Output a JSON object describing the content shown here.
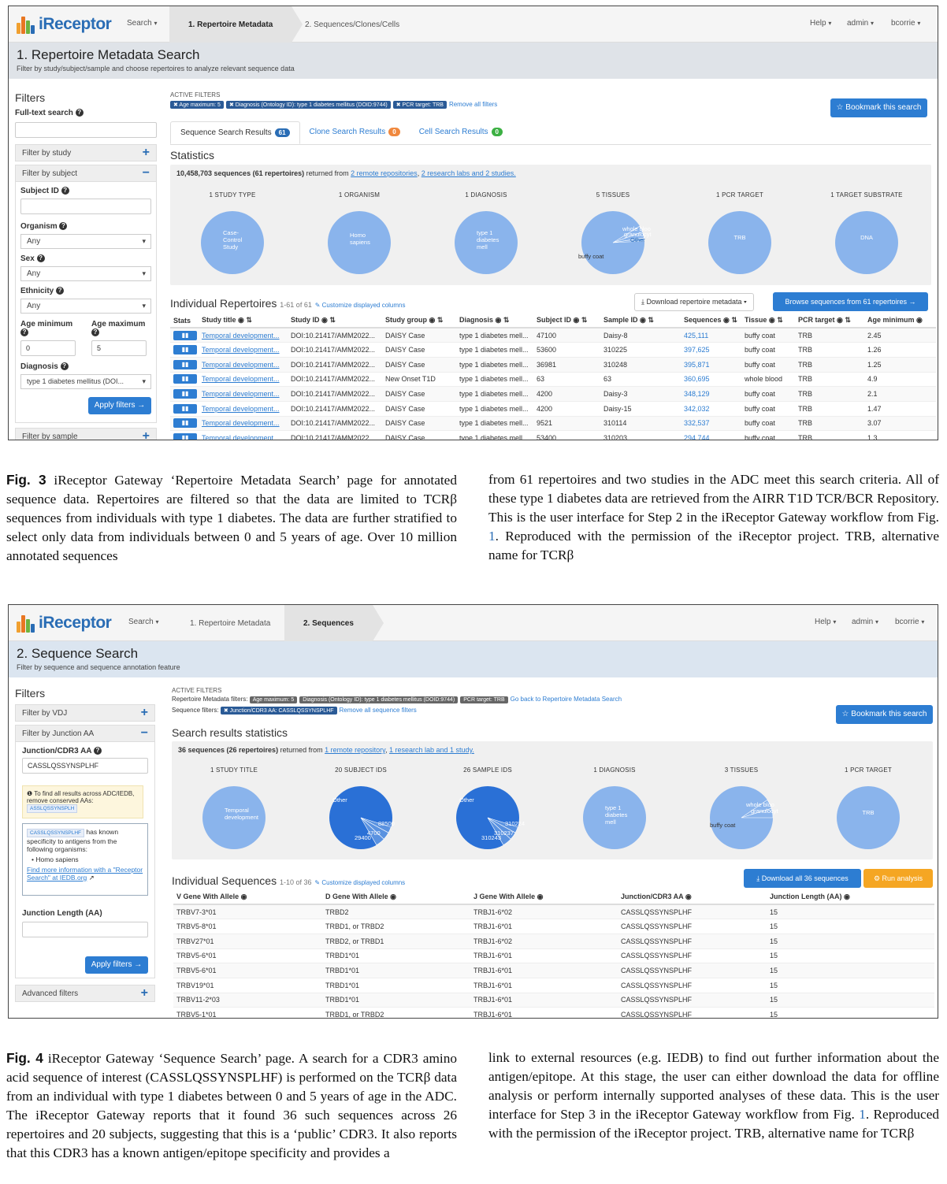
{
  "fig3": {
    "nav": {
      "logo": "iReceptor",
      "search": "Search",
      "step1": "1. Repertoire Metadata",
      "step2": "2. Sequences/Clones/Cells",
      "help": "Help",
      "admin": "admin",
      "user": "bcorrie"
    },
    "header": {
      "title": "1. Repertoire Metadata Search",
      "subtitle": "Filter by study/subject/sample and choose repertoires to analyze relevant sequence data"
    },
    "side": {
      "filters": "Filters",
      "fulltext": "Full-text search",
      "by_study": "Filter by study",
      "by_subject": "Filter by subject",
      "subject_id": "Subject ID",
      "organism": "Organism",
      "organism_val": "Any",
      "sex": "Sex",
      "sex_val": "Any",
      "ethnicity": "Ethnicity",
      "ethnicity_val": "Any",
      "age_min": "Age minimum",
      "age_max": "Age maximum",
      "age_min_val": "0",
      "age_max_val": "5",
      "diagnosis": "Diagnosis",
      "diagnosis_val": "type 1 diabetes mellitus (DOI...",
      "apply": "Apply filters →",
      "by_sample": "Filter by sample"
    },
    "active": {
      "title": "ACTIVE FILTERS",
      "c1": "✖ Age maximum: 5",
      "c2": "✖ Diagnosis (Ontology ID): type 1 diabetes mellitus (DOID:9744)",
      "c3": "✖ PCR target: TRB",
      "remove": "Remove all filters"
    },
    "bookmark": "☆ Bookmark this search",
    "tabs": {
      "t1": "Sequence Search Results",
      "t1n": "61",
      "t2": "Clone Search Results",
      "t2n": "0",
      "t3": "Cell Search Results",
      "t3n": "0"
    },
    "stats_title": "Statistics",
    "stats_line": {
      "pre": "10,458,703 sequences (61 repertoires)",
      "mid": " returned from ",
      "l1": "2 remote repositories",
      "c": ", ",
      "l2": "2 research labs and 2 studies."
    },
    "pies": [
      {
        "title": "1 STUDY TYPE",
        "labels": [
          "Case-",
          "Control",
          "Study"
        ]
      },
      {
        "title": "1 ORGANISM",
        "labels": [
          "Homo",
          "sapiens"
        ]
      },
      {
        "title": "1 DIAGNOSIS",
        "labels": [
          "type 1",
          "diabetes",
          "mell"
        ]
      },
      {
        "title": "5 TISSUES",
        "labels": [
          "whole bloo",
          "granulocyt",
          "Other",
          "buffy coat"
        ]
      },
      {
        "title": "1 PCR TARGET",
        "labels": [
          "TRB"
        ]
      },
      {
        "title": "1 TARGET SUBSTRATE",
        "labels": [
          "DNA"
        ]
      }
    ],
    "indiv": {
      "title": "Individual Repertoires",
      "range": "1-61 of 61",
      "customize": "Customize displayed columns",
      "download": "⤓ Download repertoire metadata ▾",
      "browse": "Browse sequences from 61 repertoires →"
    },
    "table": {
      "headers": [
        "Stats",
        "Study title",
        "Study ID",
        "Study group",
        "Diagnosis",
        "Subject ID",
        "Sample ID",
        "Sequences",
        "Tissue",
        "PCR target",
        "Age minimum"
      ],
      "rows": [
        [
          "Temporal development...",
          "DOI:10.21417/AMM2022...",
          "DAISY Case",
          "type 1 diabetes mell...",
          "47100",
          "Daisy-8",
          "425,111",
          "buffy coat",
          "TRB",
          "2.45"
        ],
        [
          "Temporal development...",
          "DOI:10.21417/AMM2022...",
          "DAISY Case",
          "type 1 diabetes mell...",
          "53600",
          "310225",
          "397,625",
          "buffy coat",
          "TRB",
          "1.26"
        ],
        [
          "Temporal development...",
          "DOI:10.21417/AMM2022...",
          "DAISY Case",
          "type 1 diabetes mell...",
          "36981",
          "310248",
          "395,871",
          "buffy coat",
          "TRB",
          "1.25"
        ],
        [
          "Temporal development...",
          "DOI:10.21417/AMM2022...",
          "New Onset T1D",
          "type 1 diabetes mell...",
          "63",
          "63",
          "360,695",
          "whole blood",
          "TRB",
          "4.9"
        ],
        [
          "Temporal development...",
          "DOI:10.21417/AMM2022...",
          "DAISY Case",
          "type 1 diabetes mell...",
          "4200",
          "Daisy-3",
          "348,129",
          "buffy coat",
          "TRB",
          "2.1"
        ],
        [
          "Temporal development...",
          "DOI:10.21417/AMM2022...",
          "DAISY Case",
          "type 1 diabetes mell...",
          "4200",
          "Daisy-15",
          "342,032",
          "buffy coat",
          "TRB",
          "1.47"
        ],
        [
          "Temporal development...",
          "DOI:10.21417/AMM2022...",
          "DAISY Case",
          "type 1 diabetes mell...",
          "9521",
          "310114",
          "332,537",
          "buffy coat",
          "TRB",
          "3.07"
        ],
        [
          "Temporal development...",
          "DOI:10.21417/AMM2022...",
          "DAISY Case",
          "type 1 diabetes mell...",
          "53400",
          "310203",
          "294,744",
          "buffy coat",
          "TRB",
          "1.3"
        ]
      ]
    }
  },
  "cap3": {
    "label": "Fig. 3",
    "left": "iReceptor Gateway ‘Repertoire Metadata Search’ page for annotated sequence data. Repertoires are filtered so that the data are limited to TCRβ sequences from individuals with type 1 diabetes. The data are further stratified to select only data from individuals between 0 and 5 years of age. Over 10 million annotated sequences",
    "right_a": "from 61 repertoires and two studies in the ADC meet this search criteria. All of these type 1 diabetes data are retrieved from the AIRR T1D TCR/BCR Repository. This is the user interface for Step 2 in the iReceptor Gateway workflow from Fig. ",
    "right_ref": "1",
    "right_b": ". Reproduced with the permission of the iReceptor project. TRB, alternative name for TCRβ"
  },
  "fig4": {
    "nav": {
      "logo": "iReceptor",
      "search": "Search",
      "step1": "1. Repertoire Metadata",
      "step2": "2. Sequences",
      "help": "Help",
      "admin": "admin",
      "user": "bcorrie"
    },
    "header": {
      "title": "2. Sequence Search",
      "subtitle": "Filter by sequence and sequence annotation feature"
    },
    "side": {
      "filters": "Filters",
      "by_vdj": "Filter by VDJ",
      "by_junction": "Filter by Junction AA",
      "junction": "Junction/CDR3 AA",
      "junction_val": "CASSLQSSYNSPLHF",
      "info": "To find all results across ADC/IEDB, remove conserved AAs:",
      "info_code": "ASSLQSSYNSPLH",
      "ag_code": "CASSLQSSYNSPLHF",
      "ag_text": "has known specificity to antigens from the following organisms:",
      "ag_org": "Homo sapiens",
      "ag_link": "Find more information with a \"Receptor Search\" at IEDB.org",
      "jlen": "Junction Length (AA)",
      "apply": "Apply filters →",
      "advanced": "Advanced filters"
    },
    "active": {
      "title": "ACTIVE FILTERS",
      "rep_label": "Repertoire Metadata filters:",
      "c1": "Age maximum: 5",
      "c2": "Diagnosis (Ontology ID): type 1 diabetes mellitus (DOID:9744)",
      "c3": "PCR target: TRB",
      "goback": "Go back to Repertoire Metadata Search",
      "seq_label": "Sequence filters:",
      "s1": "✖ Junction/CDR3 AA: CASSLQSSYNSPLHF",
      "remove": "Remove all sequence filters"
    },
    "bookmark": "☆ Bookmark this search",
    "stats_title": "Search results statistics",
    "stats_line": {
      "pre": "36 sequences (26 repertoires)",
      "mid": " returned from ",
      "l1": "1 remote repository",
      "c": ", ",
      "l2": "1 research lab and 1 study."
    },
    "pies": [
      {
        "title": "1 STUDY TITLE",
        "labels": [
          "Temporal",
          "development"
        ]
      },
      {
        "title": "20 SUBJECT IDS",
        "labels": [
          "Other",
          "88500",
          "4700",
          "29400"
        ]
      },
      {
        "title": "26 SAMPLE IDS",
        "labels": [
          "Other",
          "310224",
          "310237",
          "310243"
        ]
      },
      {
        "title": "1 DIAGNOSIS",
        "labels": [
          "type 1",
          "diabetes",
          "mell"
        ]
      },
      {
        "title": "3 TISSUES",
        "labels": [
          "whole bloo",
          "granulocyt",
          "buffy coat"
        ]
      },
      {
        "title": "1 PCR TARGET",
        "labels": [
          "TRB"
        ]
      }
    ],
    "indiv": {
      "title": "Individual Sequences",
      "range": "1-10 of 36",
      "customize": "Customize displayed columns",
      "download": "⤓ Download all 36 sequences",
      "run": "⚙ Run analysis"
    },
    "table": {
      "headers": [
        "V Gene With Allele",
        "D Gene With Allele",
        "J Gene With Allele",
        "Junction/CDR3 AA",
        "Junction Length (AA)"
      ],
      "rows": [
        [
          "TRBV7-3*01",
          "TRBD2",
          "TRBJ1-6*02",
          "CASSLQSSYNSPLHF",
          "15"
        ],
        [
          "TRBV5-8*01",
          "TRBD1, or TRBD2",
          "TRBJ1-6*01",
          "CASSLQSSYNSPLHF",
          "15"
        ],
        [
          "TRBV27*01",
          "TRBD2, or TRBD1",
          "TRBJ1-6*02",
          "CASSLQSSYNSPLHF",
          "15"
        ],
        [
          "TRBV5-6*01",
          "TRBD1*01",
          "TRBJ1-6*01",
          "CASSLQSSYNSPLHF",
          "15"
        ],
        [
          "TRBV5-6*01",
          "TRBD1*01",
          "TRBJ1-6*01",
          "CASSLQSSYNSPLHF",
          "15"
        ],
        [
          "TRBV19*01",
          "TRBD1*01",
          "TRBJ1-6*01",
          "CASSLQSSYNSPLHF",
          "15"
        ],
        [
          "TRBV11-2*03",
          "TRBD1*01",
          "TRBJ1-6*01",
          "CASSLQSSYNSPLHF",
          "15"
        ],
        [
          "TRBV5-1*01",
          "TRBD1, or TRBD2",
          "TRBJ1-6*01",
          "CASSLQSSYNSPLHF",
          "15"
        ]
      ]
    }
  },
  "cap4": {
    "label": "Fig. 4",
    "left": "iReceptor Gateway ‘Sequence Search’ page. A search for a CDR3 amino acid sequence of interest (CASSLQSSYNSPLHF) is performed on the TCRβ data from an individual with type 1 diabetes between 0 and 5 years of age in the ADC. The iReceptor Gateway reports that it found 36 such sequences across 26 repertoires and 20 subjects, suggesting that this is a ‘public’ CDR3. It also reports that this CDR3 has a known antigen/epitope specificity and provides a",
    "right_a": "link to external resources (e.g. IEDB) to find out further information about the antigen/epitope. At this stage, the user can either download the data for offline analysis or perform internally supported analyses of these data. This is the user interface for Step 3 in the iReceptor Gateway workflow from Fig. ",
    "right_ref": "1",
    "right_b": ". Reproduced with the permission of the iReceptor project. TRB, alternative name for TCRβ"
  },
  "colors": {
    "brand": "#2a6db5",
    "pie_light": "#8ab4ec",
    "pie_dark": "#2a70d6",
    "badge_blue": "#2a6db5",
    "badge_orange": "#f0883e",
    "badge_green": "#3cb043",
    "run_orange": "#f5a623"
  }
}
